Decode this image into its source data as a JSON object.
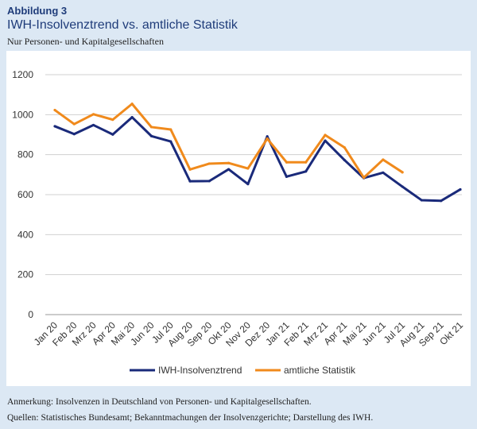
{
  "figure": {
    "label": "Abbildung 3",
    "title": "IWH-Insolvenztrend vs. amtliche Statistik",
    "subtitle": "Nur Personen- und Kapitalgesellschaften"
  },
  "chart_data": {
    "type": "line",
    "categories": [
      "Jan 20",
      "Feb 20",
      "Mrz 20",
      "Apr 20",
      "Mai 20",
      "Jun 20",
      "Jul 20",
      "Aug 20",
      "Sep 20",
      "Okt 20",
      "Nov 20",
      "Dez 20",
      "Jan 21",
      "Feb 21",
      "Mrz 21",
      "Apr 21",
      "Mai 21",
      "Jun 21",
      "Jul 21",
      "Aug 21",
      "Sep 21",
      "Okt 21"
    ],
    "ylim": [
      0,
      1200
    ],
    "yticks": [
      0,
      200,
      400,
      600,
      800,
      1000,
      1200
    ],
    "grid": true,
    "legend_position": "bottom",
    "series": [
      {
        "name": "IWH-Insolvenztrend",
        "color": "#1a2a7a",
        "values": [
          942,
          903,
          948,
          901,
          987,
          893,
          866,
          667,
          668,
          727,
          653,
          891,
          690,
          716,
          870,
          773,
          683,
          710,
          640,
          572,
          569,
          626
        ]
      },
      {
        "name": "amtliche Statistik",
        "color": "#f08a1c",
        "values": [
          1023,
          953,
          1002,
          975,
          1054,
          938,
          926,
          726,
          755,
          758,
          731,
          880,
          762,
          762,
          898,
          836,
          685,
          775,
          712,
          null,
          null,
          null
        ]
      }
    ]
  },
  "notes": {
    "remark": "Anmerkung: Insolvenzen in Deutschland von Personen- und Kapitalgesellschaften.",
    "sources": "Quellen: Statistisches Bundesamt; Bekanntmachungen der Insolvenzgerichte; Darstellung des IWH."
  }
}
